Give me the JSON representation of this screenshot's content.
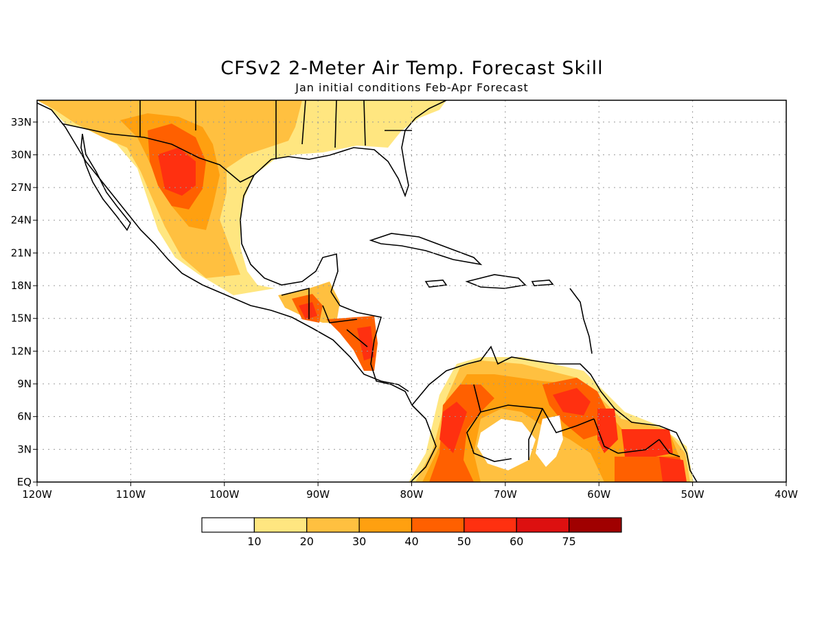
{
  "title": "CFSv2 2-Meter Air Temp. Forecast Skill",
  "subtitle": "Jan initial conditions  Feb-Apr Forecast",
  "map": {
    "lon_range": [
      -120,
      -40
    ],
    "lat_range": [
      0,
      35
    ],
    "x_ticks": [
      {
        "value": -120,
        "label": "120W"
      },
      {
        "value": -110,
        "label": "110W"
      },
      {
        "value": -100,
        "label": "100W"
      },
      {
        "value": -90,
        "label": "90W"
      },
      {
        "value": -80,
        "label": "80W"
      },
      {
        "value": -70,
        "label": "70W"
      },
      {
        "value": -60,
        "label": "60W"
      },
      {
        "value": -50,
        "label": "50W"
      },
      {
        "value": -40,
        "label": "40W"
      }
    ],
    "y_ticks": [
      {
        "value": 0,
        "label": "EQ"
      },
      {
        "value": 3,
        "label": "3N"
      },
      {
        "value": 6,
        "label": "6N"
      },
      {
        "value": 9,
        "label": "9N"
      },
      {
        "value": 12,
        "label": "12N"
      },
      {
        "value": 15,
        "label": "15N"
      },
      {
        "value": 18,
        "label": "18N"
      },
      {
        "value": 21,
        "label": "21N"
      },
      {
        "value": 24,
        "label": "24N"
      },
      {
        "value": 27,
        "label": "27N"
      },
      {
        "value": 30,
        "label": "30N"
      },
      {
        "value": 33,
        "label": "33N"
      }
    ],
    "grid": true
  },
  "colorbar": {
    "colors": [
      "#ffffff",
      "#ffe680",
      "#ffc040",
      "#ffa010",
      "#ff6000",
      "#ff3010",
      "#dd1010",
      "#a00000"
    ],
    "labels": [
      "10",
      "20",
      "30",
      "40",
      "50",
      "60",
      "75"
    ]
  },
  "colors": {
    "skill_10_20": "#ffe680",
    "skill_20_30": "#ffc040",
    "skill_30_40": "#ffa010",
    "skill_40_50": "#ff6000",
    "skill_50_60": "#ff3010",
    "skill_60_75": "#dd1010",
    "skill_75_plus": "#a00000"
  }
}
